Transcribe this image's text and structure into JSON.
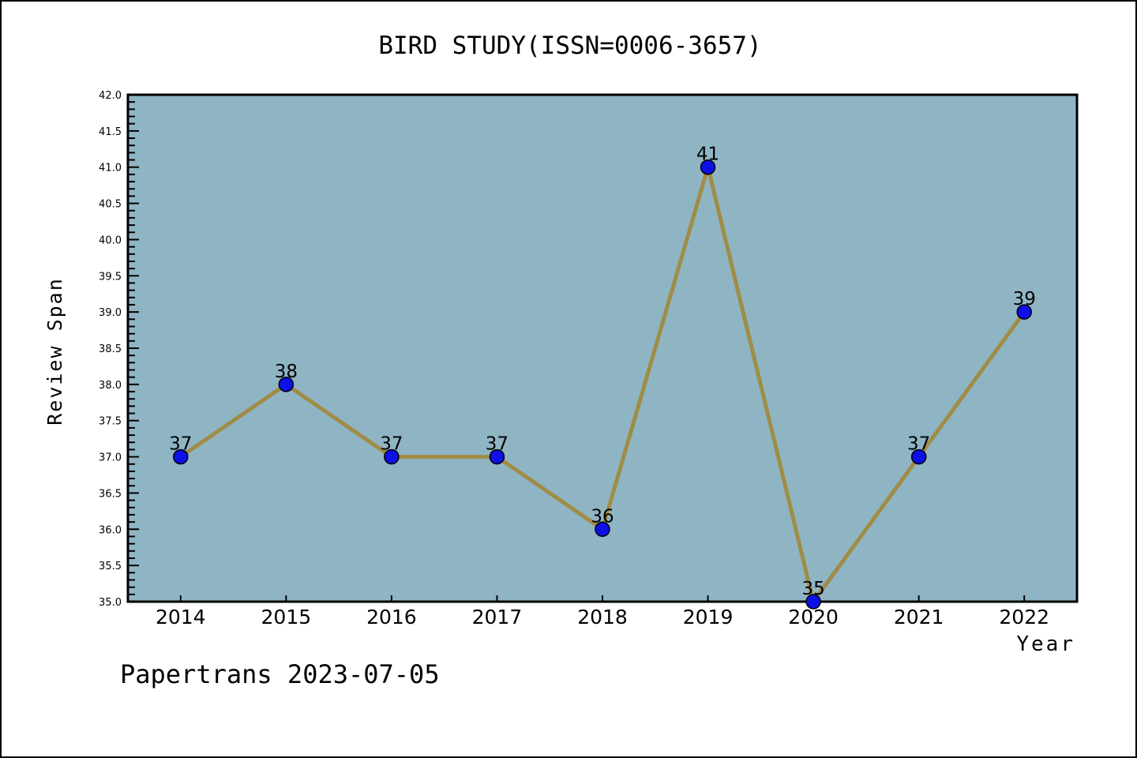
{
  "chart_data": {
    "type": "line",
    "title": "BIRD STUDY(ISSN=0006-3657)",
    "xlabel": "Year",
    "ylabel": "Review Span",
    "categories": [
      "2014",
      "2015",
      "2016",
      "2017",
      "2018",
      "2019",
      "2020",
      "2021",
      "2022"
    ],
    "series": [
      {
        "name": "Review Span",
        "values": [
          37,
          38,
          37,
          37,
          36,
          41,
          35,
          37,
          39
        ]
      }
    ],
    "point_labels": [
      "37",
      "38",
      "37",
      "37",
      "36",
      "41",
      "35",
      "37",
      "39"
    ],
    "ylim": [
      35.0,
      42.0
    ],
    "ytick_step": 0.5,
    "yminor_step": 0.1,
    "ytick_decimals": 1,
    "grid": false,
    "legend_position": "none",
    "marker": "circle",
    "footer": "Papertrans 2023-07-05",
    "colors": {
      "page_background": "#FFFFFF",
      "plot_background": "#8FB5C4",
      "line": "#A08C46",
      "marker_fill": "#0F0FE8",
      "marker_edge": "#000000",
      "axis": "#000000",
      "text": "#000000"
    }
  }
}
